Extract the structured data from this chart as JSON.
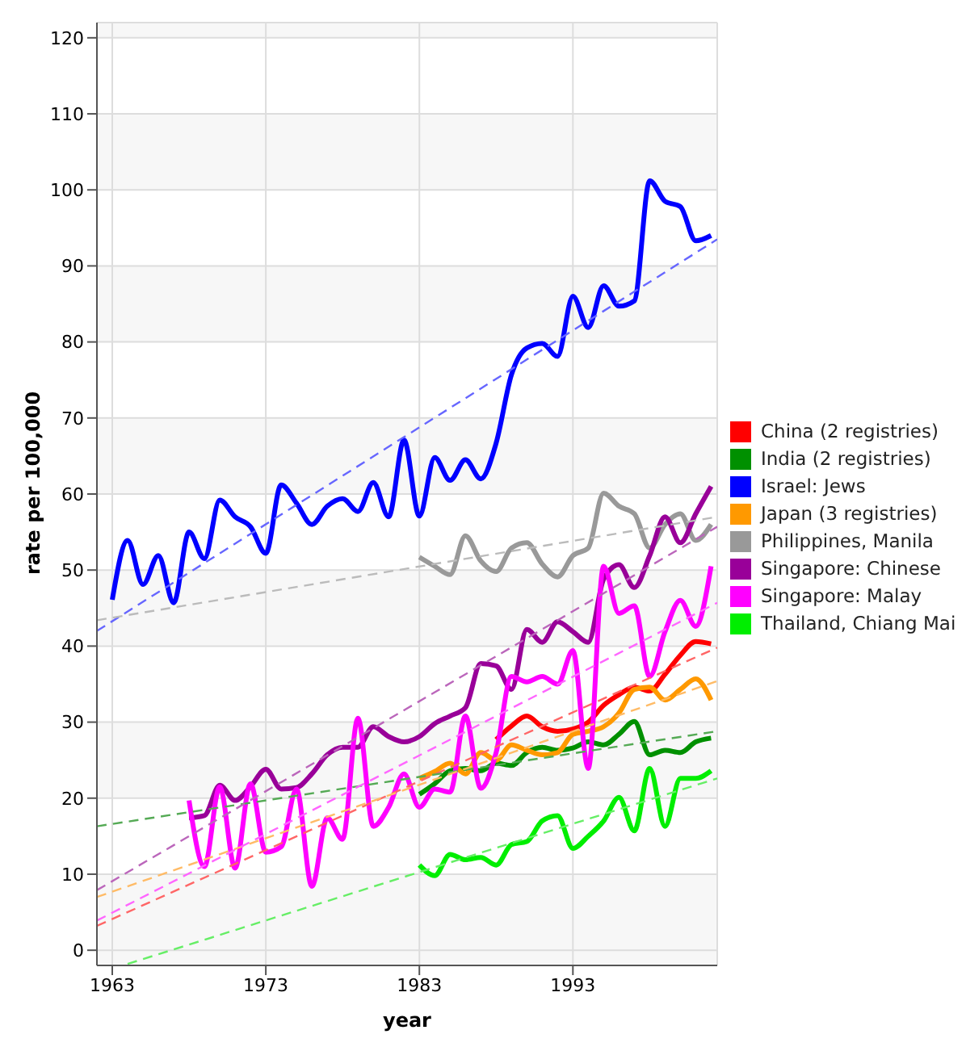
{
  "chart_data": {
    "type": "line",
    "xlabel": "year",
    "ylabel": "rate per 100,000",
    "xlim": [
      1962,
      2002.4
    ],
    "xticks": [
      1963,
      1973,
      1983,
      1993
    ],
    "ylim": [
      -2,
      122
    ],
    "yticks": [
      0,
      10,
      20,
      30,
      40,
      50,
      60,
      70,
      80,
      90,
      100,
      110,
      120
    ],
    "grid": true,
    "legend": "right",
    "marker": "none",
    "series": [
      {
        "name": "China (2 registries)",
        "color": "#ff0000",
        "line_style": "solid",
        "x": [
          1988,
          1989,
          1990,
          1991,
          1992,
          1993,
          1994,
          1995,
          1996,
          1997,
          1998,
          1999,
          2000,
          2001,
          2002
        ],
        "values": [
          27.7,
          29.5,
          30.8,
          29.4,
          28.8,
          29.1,
          30,
          32.2,
          33.6,
          34.6,
          34.1,
          36.3,
          38.8,
          40.6,
          40.3
        ]
      },
      {
        "name": "India (2 registries)",
        "color": "#009000",
        "line_style": "solid",
        "x": [
          1983,
          1984,
          1985,
          1986,
          1987,
          1988,
          1989,
          1990,
          1991,
          1992,
          1993,
          1994,
          1995,
          1996,
          1997,
          1998,
          1999,
          2000,
          2001,
          2002
        ],
        "values": [
          20.5,
          21.9,
          23.6,
          23.9,
          23.6,
          24.6,
          24.3,
          26,
          26.7,
          26.3,
          26.6,
          27.4,
          27,
          28.4,
          30.1,
          25.7,
          26.3,
          26,
          27.4,
          27.9
        ]
      },
      {
        "name": "Israel: Jews",
        "color": "#0000ff",
        "line_style": "solid",
        "x": [
          1963,
          1964,
          1965,
          1966,
          1967,
          1968,
          1969,
          1970,
          1971,
          1972,
          1973,
          1974,
          1975,
          1976,
          1977,
          1978,
          1979,
          1980,
          1981,
          1982,
          1983,
          1984,
          1985,
          1986,
          1987,
          1988,
          1989,
          1990,
          1991,
          1992,
          1993,
          1994,
          1995,
          1996,
          1997,
          1998,
          1999,
          2000,
          2001,
          2002
        ],
        "values": [
          46.1,
          53.9,
          48.1,
          51.9,
          45.7,
          55,
          51.5,
          59.2,
          57,
          55.7,
          52.2,
          61.2,
          58.8,
          56,
          58.4,
          59.4,
          57.7,
          61.5,
          57,
          67.1,
          57.1,
          64.8,
          61.8,
          64.5,
          62,
          66.7,
          75.7,
          79.2,
          79.8,
          78.1,
          86,
          81.9,
          87.4,
          84.7,
          85.4,
          101.2,
          98.5,
          97.8,
          93.3,
          94
        ]
      },
      {
        "name": "Japan (3 registries)",
        "color": "#ff9900",
        "line_style": "solid",
        "x": [
          1983,
          1984,
          1985,
          1986,
          1987,
          1988,
          1989,
          1990,
          1991,
          1992,
          1993,
          1994,
          1995,
          1996,
          1997,
          1998,
          1999,
          2000,
          2001,
          2002
        ],
        "values": [
          22.6,
          23.5,
          24.6,
          23.2,
          26,
          25,
          27,
          26.3,
          25.7,
          26,
          28.4,
          28.8,
          29.4,
          31.2,
          34.3,
          34.6,
          32.9,
          34.3,
          35.7,
          32.9
        ]
      },
      {
        "name": "Philippines, Manila",
        "color": "#999999",
        "line_style": "solid",
        "x": [
          1983,
          1984,
          1985,
          1986,
          1987,
          1988,
          1989,
          1990,
          1991,
          1992,
          1993,
          1994,
          1995,
          1996,
          1997,
          1998,
          1999,
          2000,
          2001,
          2002
        ],
        "values": [
          51.7,
          50.5,
          49.4,
          54.5,
          51.2,
          49.8,
          52.9,
          53.6,
          50.8,
          49.1,
          51.9,
          52.9,
          60.1,
          58.4,
          57.4,
          52.9,
          56,
          57.4,
          53.9,
          56
        ]
      },
      {
        "name": "Singapore: Chinese",
        "color": "#990099",
        "line_style": "solid",
        "x": [
          1968,
          1969,
          1970,
          1971,
          1972,
          1973,
          1974,
          1975,
          1976,
          1977,
          1978,
          1979,
          1980,
          1981,
          1982,
          1983,
          1984,
          1985,
          1986,
          1987,
          1988,
          1989,
          1990,
          1991,
          1992,
          1993,
          1994,
          1995,
          1996,
          1997,
          1998,
          1999,
          2000,
          2001,
          2002
        ],
        "values": [
          17.4,
          17.7,
          21.7,
          19.7,
          21.5,
          23.8,
          21.2,
          21.4,
          23.2,
          25.7,
          26.7,
          26.7,
          29.4,
          28.1,
          27.4,
          28.1,
          29.8,
          30.8,
          31.9,
          37.7,
          37.4,
          34.3,
          42.2,
          40.5,
          43.2,
          41.9,
          40.5,
          48.8,
          50.7,
          47.7,
          51.9,
          57,
          53.6,
          57.4,
          61
        ]
      },
      {
        "name": "Singapore: Malay",
        "color": "#ff00ff",
        "line_style": "solid",
        "x": [
          1968,
          1969,
          1970,
          1971,
          1972,
          1973,
          1974,
          1975,
          1976,
          1977,
          1978,
          1979,
          1980,
          1981,
          1982,
          1983,
          1984,
          1985,
          1986,
          1987,
          1988,
          1989,
          1990,
          1991,
          1992,
          1993,
          1994,
          1995,
          1996,
          1997,
          1998,
          1999,
          2000,
          2001,
          2002
        ],
        "values": [
          19.7,
          11,
          21.5,
          10.8,
          21.9,
          12.9,
          13.6,
          21.2,
          8.4,
          17.4,
          14.6,
          30.5,
          16.3,
          18.8,
          23.2,
          18.8,
          21.2,
          20.8,
          30.8,
          21.3,
          26,
          36,
          35.3,
          36,
          35,
          39.4,
          23.9,
          50.5,
          44.3,
          45.3,
          36,
          41.9,
          46,
          42.6,
          50.5
        ]
      },
      {
        "name": "Thailand, Chiang Mai",
        "color": "#00ee00",
        "line_style": "solid",
        "x": [
          1983,
          1984,
          1985,
          1986,
          1987,
          1988,
          1989,
          1990,
          1991,
          1992,
          1993,
          1994,
          1995,
          1996,
          1997,
          1998,
          1999,
          2000,
          2001,
          2002
        ],
        "values": [
          11.2,
          9.8,
          12.6,
          11.9,
          12.2,
          11.2,
          13.9,
          14.3,
          17,
          17.7,
          13.4,
          15,
          17,
          20.1,
          15.7,
          23.9,
          16.3,
          22.6,
          22.6,
          23.6
        ]
      },
      {
        "color": "#ff6666",
        "type": "line",
        "line_style": "dashed",
        "x": [
          1962,
          2002.4
        ],
        "values": [
          3.2,
          39.8
        ]
      },
      {
        "color": "#55aa55",
        "type": "line",
        "line_style": "dashed",
        "x": [
          1962,
          2002.4
        ],
        "values": [
          16.3,
          28.8
        ]
      },
      {
        "color": "#6666ff",
        "type": "line",
        "line_style": "dashed",
        "x": [
          1962,
          2002.4
        ],
        "values": [
          42,
          93.5
        ]
      },
      {
        "color": "#ffbb66",
        "type": "line",
        "line_style": "dashed",
        "x": [
          1962,
          2002.4
        ],
        "values": [
          7,
          35.4
        ]
      },
      {
        "color": "#bbbbbb",
        "type": "line",
        "line_style": "dashed",
        "x": [
          1962,
          2002.4
        ],
        "values": [
          43.4,
          57
        ]
      },
      {
        "color": "#bb66bb",
        "type": "line",
        "line_style": "dashed",
        "x": [
          1962,
          2002.4
        ],
        "values": [
          7.9,
          55.7
        ]
      },
      {
        "color": "#ff66ff",
        "type": "line",
        "line_style": "dashed",
        "x": [
          1962,
          2002.4
        ],
        "values": [
          3.9,
          45.7
        ]
      },
      {
        "color": "#66ee66",
        "type": "line",
        "line_style": "dashed",
        "x": [
          1964,
          2002.4
        ],
        "values": [
          -1.8,
          22.6
        ]
      }
    ]
  }
}
